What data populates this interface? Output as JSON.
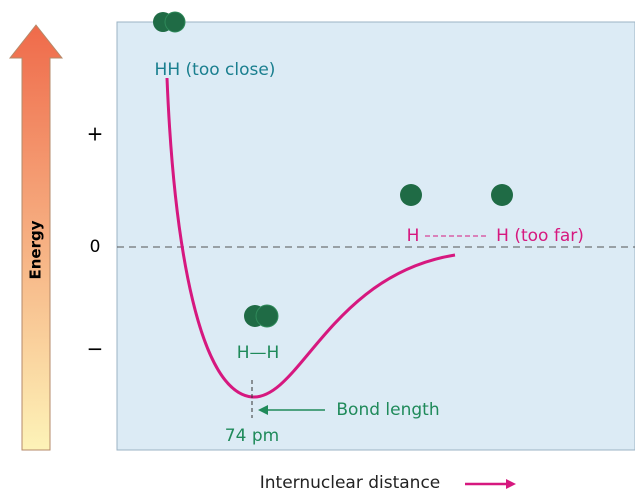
{
  "axes": {
    "y_label": "Energy",
    "x_label": "Internuclear distance",
    "y_ticks": [
      "+",
      "0",
      "−"
    ]
  },
  "labels": {
    "too_close": "HH (too close)",
    "bonded": "H—H",
    "far_left": "H",
    "far_right": "H (too far)",
    "bond_length": "Bond length",
    "bond_value": "74 pm"
  }
}
